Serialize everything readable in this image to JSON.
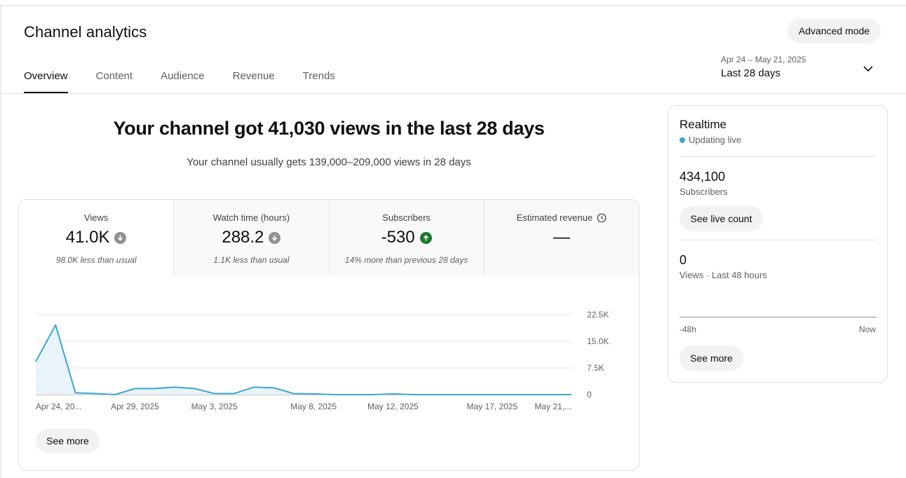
{
  "page": {
    "title": "Channel analytics",
    "advanced_mode": "Advanced mode"
  },
  "tabs": [
    {
      "label": "Overview",
      "active": true
    },
    {
      "label": "Content"
    },
    {
      "label": "Audience"
    },
    {
      "label": "Revenue"
    },
    {
      "label": "Trends"
    }
  ],
  "date_selector": {
    "range": "Apr 24 – May 21, 2025",
    "label": "Last 28 days",
    "icon": "chevron-down-icon"
  },
  "summary": {
    "headline": "Your channel got 41,030 views in the last 28 days",
    "subline": "Your channel usually gets 139,000–209,000 views in 28 days"
  },
  "metrics": [
    {
      "label": "Views",
      "value": "41.0K",
      "trend": "down",
      "note": "98.0K less than usual"
    },
    {
      "label": "Watch time (hours)",
      "value": "288.2",
      "trend": "down",
      "note": "1.1K less than usual"
    },
    {
      "label": "Subscribers",
      "value": "-530",
      "trend": "up",
      "note": "14% more than previous 28 days"
    },
    {
      "label": "Estimated revenue",
      "value": "—",
      "icon": "clock-icon"
    }
  ],
  "chart_data": {
    "type": "area",
    "x_tick_labels": [
      "Apr 24, 20...",
      "Apr 29, 2025",
      "May 3, 2025",
      "May 8, 2025",
      "May 12, 2025",
      "May 17, 2025",
      "May 21,..."
    ],
    "y_tick_labels": [
      "22.5K",
      "15.0K",
      "7.5K",
      "0"
    ],
    "ylim": [
      0,
      22500
    ],
    "grid": true,
    "series": [
      {
        "values": [
          9300,
          19600,
          500,
          300,
          0,
          1700,
          1700,
          2100,
          1700,
          300,
          300,
          2100,
          1900,
          300,
          200,
          0,
          0,
          0,
          200,
          0,
          0,
          0,
          0,
          0,
          0,
          0,
          0,
          0
        ],
        "color": "#3ea6d0",
        "fill": "#e8f3fa"
      }
    ]
  },
  "see_more": "See more",
  "realtime": {
    "title": "Realtime",
    "status": "Updating live",
    "subscribers_value": "434,100",
    "subscribers_label": "Subscribers",
    "live_count_button": "See live count",
    "views_value": "0",
    "views_label": "Views · Last 48 hours",
    "axis_start": "-48h",
    "axis_end": "Now",
    "see_more": "See more"
  }
}
